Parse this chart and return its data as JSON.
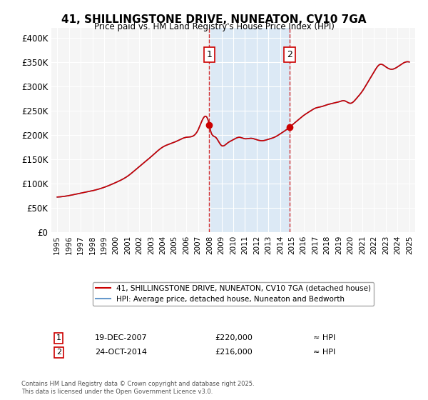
{
  "title": "41, SHILLINGSTONE DRIVE, NUNEATON, CV10 7GA",
  "subtitle": "Price paid vs. HM Land Registry's House Price Index (HPI)",
  "xlabel": "",
  "ylabel": "",
  "background_color": "#ffffff",
  "plot_background_color": "#f5f5f5",
  "grid_color": "#ffffff",
  "hpi_line_color": "#6699cc",
  "price_line_color": "#cc0000",
  "highlight_fill": "#dce9f5",
  "marker_color": "#cc0000",
  "annotation1": {
    "label": "1",
    "date": 2007.96,
    "value": 220000,
    "date_str": "19-DEC-2007",
    "price_str": "£220,000"
  },
  "annotation2": {
    "label": "2",
    "date": 2014.81,
    "value": 216000,
    "date_str": "24-OCT-2014",
    "price_str": "£216,000"
  },
  "legend_label_price": "41, SHILLINGSTONE DRIVE, NUNEATON, CV10 7GA (detached house)",
  "legend_label_hpi": "HPI: Average price, detached house, Nuneaton and Bedworth",
  "footnote": "Contains HM Land Registry data © Crown copyright and database right 2025.\nThis data is licensed under the Open Government Licence v3.0.",
  "ylim": [
    0,
    420000
  ],
  "xlim": [
    1994.5,
    2025.5
  ],
  "ytick_values": [
    0,
    50000,
    100000,
    150000,
    200000,
    250000,
    300000,
    350000,
    400000
  ],
  "ytick_labels": [
    "£0",
    "£50K",
    "£100K",
    "£150K",
    "£200K",
    "£250K",
    "£300K",
    "£350K",
    "£400K"
  ],
  "xtick_values": [
    1995,
    1996,
    1997,
    1998,
    1999,
    2000,
    2001,
    2002,
    2003,
    2004,
    2005,
    2006,
    2007,
    2008,
    2009,
    2010,
    2011,
    2012,
    2013,
    2014,
    2015,
    2016,
    2017,
    2018,
    2019,
    2020,
    2021,
    2022,
    2023,
    2024,
    2025
  ]
}
